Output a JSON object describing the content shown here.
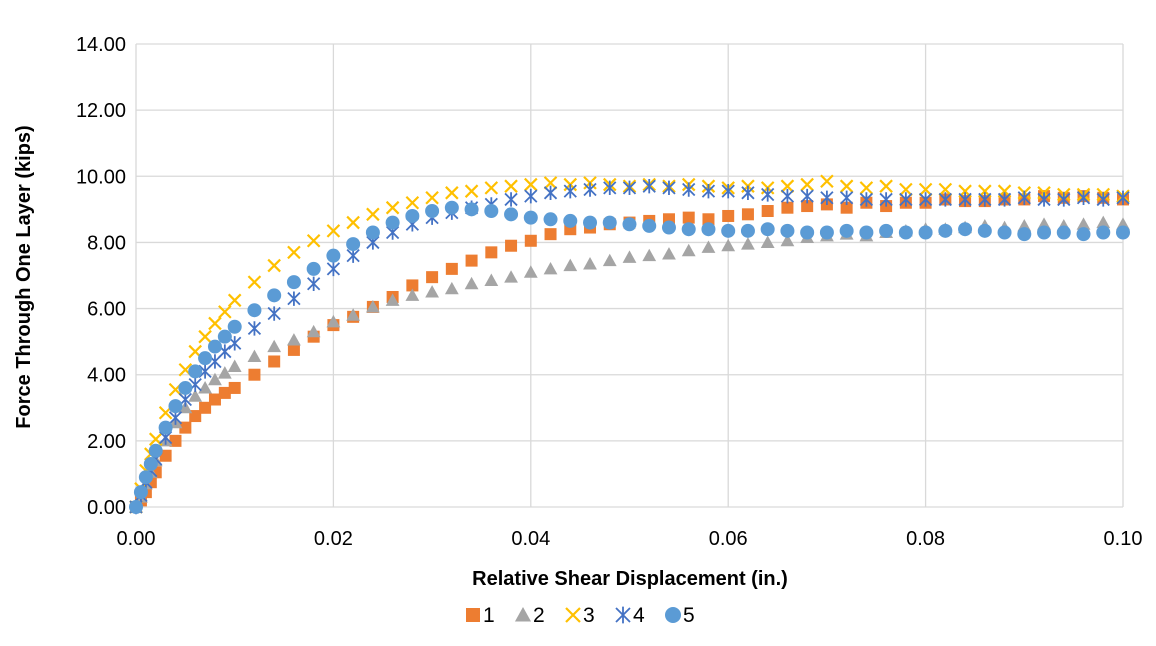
{
  "chart_data": {
    "type": "scatter",
    "xlabel": "Relative Shear Displacement (in.)",
    "ylabel": "Force Through One Layer (kips)",
    "xlim": [
      0,
      0.1
    ],
    "ylim": [
      0,
      14
    ],
    "x_ticks": [
      "0.00",
      "0.02",
      "0.04",
      "0.06",
      "0.08",
      "0.10"
    ],
    "y_ticks": [
      "0.00",
      "2.00",
      "4.00",
      "6.00",
      "8.00",
      "10.00",
      "12.00",
      "14.00"
    ],
    "grid": true,
    "legend_position": "bottom",
    "series": [
      {
        "name": "1",
        "marker": "square",
        "color": "#ed7d31",
        "points": [
          [
            0.0,
            0.0
          ],
          [
            0.0005,
            0.2
          ],
          [
            0.001,
            0.45
          ],
          [
            0.0015,
            0.75
          ],
          [
            0.002,
            1.05
          ],
          [
            0.003,
            1.55
          ],
          [
            0.004,
            2.0
          ],
          [
            0.005,
            2.4
          ],
          [
            0.006,
            2.75
          ],
          [
            0.007,
            3.0
          ],
          [
            0.008,
            3.25
          ],
          [
            0.009,
            3.45
          ],
          [
            0.01,
            3.6
          ],
          [
            0.012,
            4.0
          ],
          [
            0.014,
            4.4
          ],
          [
            0.016,
            4.75
          ],
          [
            0.018,
            5.15
          ],
          [
            0.02,
            5.5
          ],
          [
            0.022,
            5.75
          ],
          [
            0.024,
            6.05
          ],
          [
            0.026,
            6.35
          ],
          [
            0.028,
            6.7
          ],
          [
            0.03,
            6.95
          ],
          [
            0.032,
            7.2
          ],
          [
            0.034,
            7.45
          ],
          [
            0.036,
            7.7
          ],
          [
            0.038,
            7.9
          ],
          [
            0.04,
            8.05
          ],
          [
            0.042,
            8.25
          ],
          [
            0.044,
            8.4
          ],
          [
            0.046,
            8.45
          ],
          [
            0.048,
            8.55
          ],
          [
            0.05,
            8.6
          ],
          [
            0.052,
            8.65
          ],
          [
            0.054,
            8.7
          ],
          [
            0.056,
            8.75
          ],
          [
            0.058,
            8.7
          ],
          [
            0.06,
            8.8
          ],
          [
            0.062,
            8.85
          ],
          [
            0.064,
            8.95
          ],
          [
            0.066,
            9.05
          ],
          [
            0.068,
            9.1
          ],
          [
            0.07,
            9.15
          ],
          [
            0.072,
            9.05
          ],
          [
            0.074,
            9.2
          ],
          [
            0.076,
            9.1
          ],
          [
            0.078,
            9.2
          ],
          [
            0.08,
            9.2
          ],
          [
            0.082,
            9.3
          ],
          [
            0.084,
            9.25
          ],
          [
            0.086,
            9.25
          ],
          [
            0.088,
            9.3
          ],
          [
            0.09,
            9.3
          ],
          [
            0.092,
            9.4
          ],
          [
            0.094,
            9.35
          ],
          [
            0.096,
            9.4
          ],
          [
            0.098,
            9.35
          ],
          [
            0.1,
            9.3
          ]
        ]
      },
      {
        "name": "2",
        "marker": "triangle",
        "color": "#a5a5a5",
        "points": [
          [
            0.0,
            0.0
          ],
          [
            0.0005,
            0.3
          ],
          [
            0.001,
            0.7
          ],
          [
            0.0015,
            1.05
          ],
          [
            0.002,
            1.4
          ],
          [
            0.003,
            2.0
          ],
          [
            0.004,
            2.55
          ],
          [
            0.005,
            3.0
          ],
          [
            0.006,
            3.35
          ],
          [
            0.007,
            3.6
          ],
          [
            0.008,
            3.85
          ],
          [
            0.009,
            4.05
          ],
          [
            0.01,
            4.25
          ],
          [
            0.012,
            4.55
          ],
          [
            0.014,
            4.85
          ],
          [
            0.016,
            5.05
          ],
          [
            0.018,
            5.3
          ],
          [
            0.02,
            5.6
          ],
          [
            0.022,
            5.8
          ],
          [
            0.024,
            6.05
          ],
          [
            0.026,
            6.25
          ],
          [
            0.028,
            6.4
          ],
          [
            0.03,
            6.5
          ],
          [
            0.032,
            6.6
          ],
          [
            0.034,
            6.75
          ],
          [
            0.036,
            6.85
          ],
          [
            0.038,
            6.95
          ],
          [
            0.04,
            7.1
          ],
          [
            0.042,
            7.2
          ],
          [
            0.044,
            7.3
          ],
          [
            0.046,
            7.35
          ],
          [
            0.048,
            7.45
          ],
          [
            0.05,
            7.55
          ],
          [
            0.052,
            7.6
          ],
          [
            0.054,
            7.65
          ],
          [
            0.056,
            7.75
          ],
          [
            0.058,
            7.85
          ],
          [
            0.06,
            7.9
          ],
          [
            0.062,
            7.95
          ],
          [
            0.064,
            8.0
          ],
          [
            0.066,
            8.05
          ],
          [
            0.068,
            8.15
          ],
          [
            0.07,
            8.2
          ],
          [
            0.072,
            8.25
          ],
          [
            0.074,
            8.2
          ],
          [
            0.076,
            8.3
          ],
          [
            0.078,
            8.35
          ],
          [
            0.08,
            8.4
          ],
          [
            0.082,
            8.4
          ],
          [
            0.084,
            8.45
          ],
          [
            0.086,
            8.5
          ],
          [
            0.088,
            8.45
          ],
          [
            0.09,
            8.5
          ],
          [
            0.092,
            8.55
          ],
          [
            0.094,
            8.5
          ],
          [
            0.096,
            8.55
          ],
          [
            0.098,
            8.6
          ],
          [
            0.1,
            8.55
          ]
        ]
      },
      {
        "name": "3",
        "marker": "x",
        "color": "#ffc000",
        "points": [
          [
            0.0,
            0.0
          ],
          [
            0.0005,
            0.55
          ],
          [
            0.001,
            1.1
          ],
          [
            0.0015,
            1.6
          ],
          [
            0.002,
            2.05
          ],
          [
            0.003,
            2.85
          ],
          [
            0.004,
            3.55
          ],
          [
            0.005,
            4.15
          ],
          [
            0.006,
            4.7
          ],
          [
            0.007,
            5.15
          ],
          [
            0.008,
            5.55
          ],
          [
            0.009,
            5.9
          ],
          [
            0.01,
            6.25
          ],
          [
            0.012,
            6.8
          ],
          [
            0.014,
            7.3
          ],
          [
            0.016,
            7.7
          ],
          [
            0.018,
            8.05
          ],
          [
            0.02,
            8.35
          ],
          [
            0.022,
            8.6
          ],
          [
            0.024,
            8.85
          ],
          [
            0.026,
            9.05
          ],
          [
            0.028,
            9.2
          ],
          [
            0.03,
            9.35
          ],
          [
            0.032,
            9.5
          ],
          [
            0.034,
            9.55
          ],
          [
            0.036,
            9.65
          ],
          [
            0.038,
            9.7
          ],
          [
            0.04,
            9.75
          ],
          [
            0.042,
            9.8
          ],
          [
            0.044,
            9.75
          ],
          [
            0.046,
            9.8
          ],
          [
            0.048,
            9.75
          ],
          [
            0.05,
            9.7
          ],
          [
            0.052,
            9.75
          ],
          [
            0.054,
            9.7
          ],
          [
            0.056,
            9.75
          ],
          [
            0.058,
            9.7
          ],
          [
            0.06,
            9.65
          ],
          [
            0.062,
            9.7
          ],
          [
            0.064,
            9.65
          ],
          [
            0.066,
            9.7
          ],
          [
            0.068,
            9.75
          ],
          [
            0.07,
            9.85
          ],
          [
            0.072,
            9.7
          ],
          [
            0.074,
            9.65
          ],
          [
            0.076,
            9.7
          ],
          [
            0.078,
            9.6
          ],
          [
            0.08,
            9.6
          ],
          [
            0.082,
            9.6
          ],
          [
            0.084,
            9.55
          ],
          [
            0.086,
            9.55
          ],
          [
            0.088,
            9.55
          ],
          [
            0.09,
            9.5
          ],
          [
            0.092,
            9.5
          ],
          [
            0.094,
            9.45
          ],
          [
            0.096,
            9.45
          ],
          [
            0.098,
            9.45
          ],
          [
            0.1,
            9.4
          ]
        ]
      },
      {
        "name": "4",
        "marker": "star",
        "color": "#4472c4",
        "points": [
          [
            0.0,
            0.0
          ],
          [
            0.0005,
            0.35
          ],
          [
            0.001,
            0.75
          ],
          [
            0.0015,
            1.1
          ],
          [
            0.002,
            1.45
          ],
          [
            0.003,
            2.1
          ],
          [
            0.004,
            2.7
          ],
          [
            0.005,
            3.25
          ],
          [
            0.006,
            3.7
          ],
          [
            0.007,
            4.1
          ],
          [
            0.008,
            4.4
          ],
          [
            0.009,
            4.7
          ],
          [
            0.01,
            4.95
          ],
          [
            0.012,
            5.4
          ],
          [
            0.014,
            5.85
          ],
          [
            0.016,
            6.3
          ],
          [
            0.018,
            6.75
          ],
          [
            0.02,
            7.2
          ],
          [
            0.022,
            7.6
          ],
          [
            0.024,
            8.0
          ],
          [
            0.026,
            8.3
          ],
          [
            0.028,
            8.55
          ],
          [
            0.03,
            8.75
          ],
          [
            0.032,
            8.9
          ],
          [
            0.034,
            9.05
          ],
          [
            0.036,
            9.15
          ],
          [
            0.038,
            9.3
          ],
          [
            0.04,
            9.4
          ],
          [
            0.042,
            9.5
          ],
          [
            0.044,
            9.55
          ],
          [
            0.046,
            9.6
          ],
          [
            0.048,
            9.65
          ],
          [
            0.05,
            9.65
          ],
          [
            0.052,
            9.7
          ],
          [
            0.054,
            9.65
          ],
          [
            0.056,
            9.6
          ],
          [
            0.058,
            9.55
          ],
          [
            0.06,
            9.55
          ],
          [
            0.062,
            9.5
          ],
          [
            0.064,
            9.45
          ],
          [
            0.066,
            9.4
          ],
          [
            0.068,
            9.4
          ],
          [
            0.07,
            9.35
          ],
          [
            0.072,
            9.35
          ],
          [
            0.074,
            9.3
          ],
          [
            0.076,
            9.3
          ],
          [
            0.078,
            9.3
          ],
          [
            0.08,
            9.3
          ],
          [
            0.082,
            9.3
          ],
          [
            0.084,
            9.3
          ],
          [
            0.086,
            9.3
          ],
          [
            0.088,
            9.3
          ],
          [
            0.09,
            9.35
          ],
          [
            0.092,
            9.3
          ],
          [
            0.094,
            9.3
          ],
          [
            0.096,
            9.35
          ],
          [
            0.098,
            9.3
          ],
          [
            0.1,
            9.35
          ]
        ]
      },
      {
        "name": "5",
        "marker": "circle",
        "color": "#5b9bd5",
        "points": [
          [
            0.0,
            0.0
          ],
          [
            0.0005,
            0.45
          ],
          [
            0.001,
            0.9
          ],
          [
            0.0015,
            1.3
          ],
          [
            0.002,
            1.7
          ],
          [
            0.003,
            2.4
          ],
          [
            0.004,
            3.05
          ],
          [
            0.005,
            3.6
          ],
          [
            0.006,
            4.1
          ],
          [
            0.007,
            4.5
          ],
          [
            0.008,
            4.85
          ],
          [
            0.009,
            5.15
          ],
          [
            0.01,
            5.45
          ],
          [
            0.012,
            5.95
          ],
          [
            0.014,
            6.4
          ],
          [
            0.016,
            6.8
          ],
          [
            0.018,
            7.2
          ],
          [
            0.02,
            7.6
          ],
          [
            0.022,
            7.95
          ],
          [
            0.024,
            8.3
          ],
          [
            0.026,
            8.6
          ],
          [
            0.028,
            8.8
          ],
          [
            0.03,
            8.95
          ],
          [
            0.032,
            9.05
          ],
          [
            0.034,
            9.0
          ],
          [
            0.036,
            8.95
          ],
          [
            0.038,
            8.85
          ],
          [
            0.04,
            8.75
          ],
          [
            0.042,
            8.7
          ],
          [
            0.044,
            8.65
          ],
          [
            0.046,
            8.6
          ],
          [
            0.048,
            8.6
          ],
          [
            0.05,
            8.55
          ],
          [
            0.052,
            8.5
          ],
          [
            0.054,
            8.45
          ],
          [
            0.056,
            8.4
          ],
          [
            0.058,
            8.4
          ],
          [
            0.06,
            8.35
          ],
          [
            0.062,
            8.35
          ],
          [
            0.064,
            8.4
          ],
          [
            0.066,
            8.35
          ],
          [
            0.068,
            8.3
          ],
          [
            0.07,
            8.3
          ],
          [
            0.072,
            8.35
          ],
          [
            0.074,
            8.3
          ],
          [
            0.076,
            8.35
          ],
          [
            0.078,
            8.3
          ],
          [
            0.08,
            8.3
          ],
          [
            0.082,
            8.35
          ],
          [
            0.084,
            8.4
          ],
          [
            0.086,
            8.35
          ],
          [
            0.088,
            8.3
          ],
          [
            0.09,
            8.25
          ],
          [
            0.092,
            8.3
          ],
          [
            0.094,
            8.3
          ],
          [
            0.096,
            8.25
          ],
          [
            0.098,
            8.3
          ],
          [
            0.1,
            8.3
          ]
        ]
      }
    ]
  }
}
